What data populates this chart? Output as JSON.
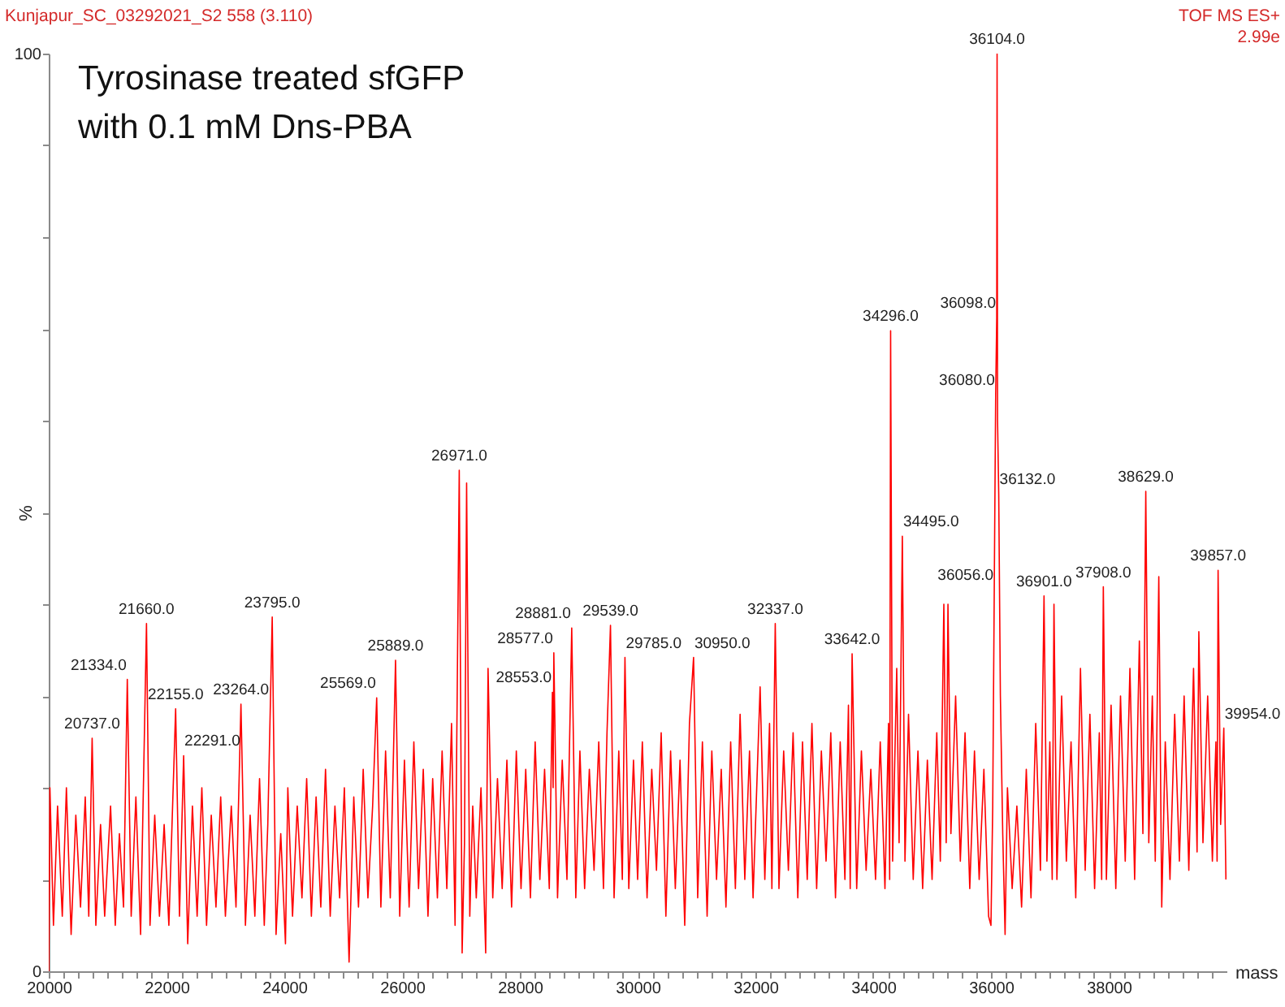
{
  "chart_data": {
    "type": "line",
    "title": "Tyrosinase treated sfGFP\nwith 0.1 mM Dns-PBA",
    "subtitle": "Kunjapur_SC_03292021_S2 558 (3.110)",
    "xlabel": "mass",
    "ylabel": "%",
    "annotations": [
      "TOF MS ES+",
      "2.99e",
      {
        "text": "20737.0",
        "x": 20737,
        "y": 25.4
      },
      {
        "text": "21334.0",
        "x": 21334,
        "y": 31.8
      },
      {
        "text": "21660.0",
        "x": 21660,
        "y": 37.9
      },
      {
        "text": "22155.0",
        "x": 22155,
        "y": 28.6
      },
      {
        "text": "22291.0",
        "x": 22291,
        "y": 23.5
      },
      {
        "text": "23264.0",
        "x": 23264,
        "y": 29.1
      },
      {
        "text": "23795.0",
        "x": 23795,
        "y": 38.6
      },
      {
        "text": "25569.0",
        "x": 25569,
        "y": 29.8
      },
      {
        "text": "25889.0",
        "x": 25889,
        "y": 33.9
      },
      {
        "text": "26971.0",
        "x": 26971,
        "y": 54.6
      },
      {
        "text": "28553.0",
        "x": 28553,
        "y": 30.4
      },
      {
        "text": "28577.0",
        "x": 28577,
        "y": 34.7
      },
      {
        "text": "28881.0",
        "x": 28881,
        "y": 37.4
      },
      {
        "text": "29539.0",
        "x": 29539,
        "y": 37.7
      },
      {
        "text": "29785.0",
        "x": 29785,
        "y": 34.2
      },
      {
        "text": "30950.0",
        "x": 30950,
        "y": 34.2
      },
      {
        "text": "32337.0",
        "x": 32337,
        "y": 37.9
      },
      {
        "text": "33642.0",
        "x": 33642,
        "y": 34.6
      },
      {
        "text": "34296.0",
        "x": 34296,
        "y": 69.8
      },
      {
        "text": "34495.0",
        "x": 34495,
        "y": 47.4
      },
      {
        "text": "36056.0",
        "x": 36056,
        "y": 41.6
      },
      {
        "text": "36080.0",
        "x": 36080,
        "y": 62.8
      },
      {
        "text": "36098.0",
        "x": 36098,
        "y": 71.2
      },
      {
        "text": "36104.0",
        "x": 36104,
        "y": 100
      },
      {
        "text": "36132.0",
        "x": 36132,
        "y": 52
      },
      {
        "text": "36901.0",
        "x": 36901,
        "y": 40.9
      },
      {
        "text": "37908.0",
        "x": 37908,
        "y": 41.9
      },
      {
        "text": "38629.0",
        "x": 38629,
        "y": 52.3
      },
      {
        "text": "39857.0",
        "x": 39857,
        "y": 43.7
      },
      {
        "text": "39954.0",
        "x": 39954,
        "y": 26.5
      }
    ],
    "xlim": [
      20000,
      40000
    ],
    "xticks": [
      20000,
      {
        "value": 20250,
        "label": null
      },
      {
        "value": 20500,
        "label": null
      },
      {
        "value": 20750,
        "label": null
      },
      {
        "value": 21000,
        "label": null
      },
      {
        "value": 21250,
        "label": null
      },
      {
        "value": 21500,
        "label": null
      },
      {
        "value": 21750,
        "label": null
      },
      22000,
      {
        "value": 22250,
        "label": null
      },
      {
        "value": 22500,
        "label": null
      },
      {
        "value": 22750,
        "label": null
      },
      {
        "value": 23000,
        "label": null
      },
      {
        "value": 23250,
        "label": null
      },
      {
        "value": 23500,
        "label": null
      },
      {
        "value": 23750,
        "label": null
      },
      24000,
      {
        "value": 24250,
        "label": null
      },
      {
        "value": 24500,
        "label": null
      },
      {
        "value": 24750,
        "label": null
      },
      {
        "value": 25000,
        "label": null
      },
      {
        "value": 25250,
        "label": null
      },
      {
        "value": 25500,
        "label": null
      },
      {
        "value": 25750,
        "label": null
      },
      26000,
      {
        "value": 26250,
        "label": null
      },
      {
        "value": 26500,
        "label": null
      },
      {
        "value": 26750,
        "label": null
      },
      {
        "value": 27000,
        "label": null
      },
      {
        "value": 27250,
        "label": null
      },
      {
        "value": 27500,
        "label": null
      },
      {
        "value": 27750,
        "label": null
      },
      28000,
      {
        "value": 28250,
        "label": null
      },
      {
        "value": 28500,
        "label": null
      },
      {
        "value": 28750,
        "label": null
      },
      {
        "value": 29000,
        "label": null
      },
      {
        "value": 29250,
        "label": null
      },
      {
        "value": 29500,
        "label": null
      },
      {
        "value": 29750,
        "label": null
      },
      30000,
      {
        "value": 30250,
        "label": null
      },
      {
        "value": 30500,
        "label": null
      },
      {
        "value": 30750,
        "label": null
      },
      {
        "value": 31000,
        "label": null
      },
      {
        "value": 31250,
        "label": null
      },
      {
        "value": 31500,
        "label": null
      },
      {
        "value": 31750,
        "label": null
      },
      32000,
      {
        "value": 32250,
        "label": null
      },
      {
        "value": 32500,
        "label": null
      },
      {
        "value": 32750,
        "label": null
      },
      {
        "value": 33000,
        "label": null
      },
      {
        "value": 33250,
        "label": null
      },
      {
        "value": 33500,
        "label": null
      },
      {
        "value": 33750,
        "label": null
      },
      34000,
      {
        "value": 34250,
        "label": null
      },
      {
        "value": 34500,
        "label": null
      },
      {
        "value": 34750,
        "label": null
      },
      {
        "value": 35000,
        "label": null
      },
      {
        "value": 35250,
        "label": null
      },
      {
        "value": 35500,
        "label": null
      },
      {
        "value": 35750,
        "label": null
      },
      36000,
      {
        "value": 36250,
        "label": null
      },
      {
        "value": 36500,
        "label": null
      },
      {
        "value": 36750,
        "label": null
      },
      {
        "value": 37000,
        "label": null
      },
      {
        "value": 37250,
        "label": null
      },
      {
        "value": 37500,
        "label": null
      },
      {
        "value": 37750,
        "label": null
      },
      38000,
      {
        "value": 38250,
        "label": null
      },
      {
        "value": 38500,
        "label": null
      },
      {
        "value": 38750,
        "label": null
      },
      {
        "value": 39000,
        "label": null
      },
      {
        "value": 39250,
        "label": null
      },
      {
        "value": 39500,
        "label": null
      },
      {
        "value": 39750,
        "label": null
      }
    ],
    "ylim": [
      0,
      100
    ],
    "yticks": [
      0,
      {
        "value": 10,
        "label": null
      },
      {
        "value": 20,
        "label": null
      },
      {
        "value": 30,
        "label": null
      },
      {
        "value": 40,
        "label": null
      },
      {
        "value": 50,
        "label": null
      },
      {
        "value": 60,
        "label": null
      },
      {
        "value": 70,
        "label": null
      },
      {
        "value": 80,
        "label": null
      },
      {
        "value": 90,
        "label": null
      },
      100
    ],
    "grid": false,
    "line_style": "solid",
    "series": [
      {
        "color": "#ff0000",
        "x": [
          20000,
          20020,
          20080,
          20150,
          20230,
          20300,
          20380,
          20460,
          20540,
          20620,
          20680,
          20737,
          20800,
          20880,
          20950,
          21050,
          21130,
          21200,
          21270,
          21334,
          21400,
          21480,
          21560,
          21660,
          21720,
          21800,
          21880,
          21960,
          22040,
          22155,
          22220,
          22291,
          22360,
          22440,
          22520,
          22600,
          22680,
          22760,
          22840,
          22920,
          23000,
          23100,
          23180,
          23264,
          23340,
          23420,
          23500,
          23580,
          23660,
          23720,
          23795,
          23860,
          23940,
          24020,
          24060,
          24140,
          24220,
          24300,
          24380,
          24460,
          24540,
          24620,
          24700,
          24780,
          24860,
          24940,
          25020,
          25100,
          25180,
          25260,
          25340,
          25420,
          25500,
          25569,
          25640,
          25720,
          25800,
          25889,
          25960,
          26040,
          26120,
          26200,
          26280,
          26360,
          26440,
          26520,
          26600,
          26680,
          26760,
          26840,
          26900,
          26971,
          27020,
          27060,
          27096,
          27150,
          27200,
          27260,
          27340,
          27420,
          27460,
          27540,
          27620,
          27700,
          27780,
          27860,
          27940,
          28020,
          28100,
          28180,
          28260,
          28340,
          28420,
          28500,
          28553,
          28565,
          28577,
          28640,
          28720,
          28800,
          28881,
          28950,
          29020,
          29100,
          29180,
          29260,
          29340,
          29420,
          29480,
          29539,
          29600,
          29680,
          29740,
          29785,
          29850,
          29930,
          30000,
          30080,
          30160,
          30240,
          30320,
          30400,
          30480,
          30560,
          30640,
          30720,
          30800,
          30880,
          30950,
          31020,
          31100,
          31180,
          31260,
          31340,
          31420,
          31500,
          31580,
          31660,
          31740,
          31820,
          31900,
          31960,
          32080,
          32160,
          32240,
          32280,
          32337,
          32400,
          32480,
          32560,
          32640,
          32720,
          32800,
          32880,
          32960,
          33040,
          33120,
          33200,
          33280,
          33360,
          33440,
          33520,
          33580,
          33610,
          33642,
          33720,
          33800,
          33880,
          33960,
          34040,
          34120,
          34200,
          34260,
          34280,
          34296,
          34330,
          34400,
          34440,
          34495,
          34540,
          34600,
          34680,
          34760,
          34840,
          34920,
          35000,
          35080,
          35140,
          35200,
          35240,
          35270,
          35320,
          35400,
          35480,
          35560,
          35640,
          35720,
          35800,
          35880,
          35960,
          36000,
          36030,
          36056,
          36080,
          36098,
          36104,
          36112,
          36132,
          36160,
          36200,
          36240,
          36280,
          36360,
          36440,
          36520,
          36600,
          36680,
          36760,
          36840,
          36901,
          36950,
          37000,
          37040,
          37070,
          37120,
          37200,
          37280,
          37360,
          37440,
          37520,
          37600,
          37680,
          37760,
          37840,
          37880,
          37908,
          37960,
          38040,
          38120,
          38200,
          38280,
          38360,
          38440,
          38520,
          38580,
          38629,
          38680,
          38740,
          38790,
          38850,
          38900,
          38960,
          39040,
          39120,
          39200,
          39280,
          39360,
          39440,
          39500,
          39530,
          39600,
          39680,
          39760,
          39820,
          39840,
          39857,
          39900,
          39954,
          39990
        ],
        "values": [
          0,
          20,
          5,
          18,
          6,
          20,
          4,
          17,
          7,
          19,
          6,
          25.4,
          5,
          16,
          6,
          18,
          5,
          15,
          7,
          31.8,
          6,
          19,
          4,
          37.9,
          5,
          17,
          6,
          16,
          5,
          28.6,
          6,
          23.5,
          3,
          18,
          6,
          20,
          5,
          17,
          7,
          19,
          6,
          18,
          7,
          29.1,
          5,
          17,
          6,
          21,
          5,
          16,
          38.6,
          4,
          15,
          3,
          20,
          6,
          18,
          8,
          21,
          6,
          19,
          7,
          22,
          6,
          18,
          8,
          20,
          1,
          19,
          7,
          22,
          8,
          18,
          29.8,
          7,
          24,
          8,
          33.9,
          6,
          23,
          7,
          25,
          9,
          22,
          6,
          21,
          8,
          24,
          9,
          27,
          5,
          54.6,
          2,
          14,
          53.2,
          6,
          18,
          8,
          20,
          2,
          33,
          8,
          21,
          9,
          23,
          7,
          24,
          9,
          22,
          8,
          25,
          10,
          22,
          9,
          30.4,
          20,
          34.7,
          8,
          23,
          10,
          37.4,
          8,
          24,
          9,
          22,
          11,
          25,
          9,
          26,
          37.7,
          8,
          24,
          10,
          34.2,
          9,
          23,
          10,
          25,
          8,
          22,
          11,
          26,
          6,
          24,
          9,
          23,
          5,
          27,
          34.2,
          8,
          25,
          6,
          24,
          10,
          22,
          7,
          25,
          9,
          28,
          10,
          24,
          8,
          31,
          10,
          27,
          9,
          37.9,
          9,
          24,
          11,
          26,
          8,
          25,
          10,
          27,
          9,
          24,
          12,
          26,
          8,
          25,
          10,
          29,
          9,
          34.6,
          9,
          24,
          11,
          22,
          10,
          25,
          9,
          27,
          10,
          69.8,
          12,
          33,
          14,
          47.4,
          12,
          28,
          10,
          24,
          9,
          23,
          10,
          26,
          12,
          40,
          14,
          40,
          15,
          30,
          12,
          26,
          9,
          24,
          10,
          22,
          6,
          5,
          18,
          41.6,
          62.8,
          71.2,
          100,
          60,
          52,
          30,
          15,
          4,
          20,
          9,
          18,
          7,
          22,
          8,
          27,
          11,
          40.9,
          12,
          25,
          10,
          40,
          10,
          30,
          12,
          25,
          8,
          33,
          11,
          28,
          9,
          26,
          10,
          41.9,
          10,
          29,
          9,
          30,
          12,
          33,
          10,
          36,
          15,
          52.3,
          14,
          30,
          12,
          43,
          7,
          25,
          10,
          28,
          12,
          30,
          11,
          33,
          13,
          37,
          14,
          30,
          12,
          25,
          12,
          43.7,
          16,
          26.5,
          10
        ]
      }
    ]
  }
}
